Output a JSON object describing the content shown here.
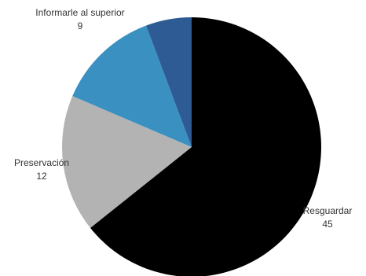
{
  "chart_data": {
    "type": "pie",
    "start": "12 o'clock",
    "direction": "clockwise",
    "slices": [
      {
        "label": "Resguardar",
        "value": 45,
        "color": "#000000"
      },
      {
        "label": "Preservación",
        "value": 12,
        "color": "#b3b3b3"
      },
      {
        "label": "Informarle al superior",
        "value": 9,
        "color": "#3a90c0"
      },
      {
        "label": "",
        "value": 4,
        "color": "#2e5b94"
      }
    ]
  }
}
